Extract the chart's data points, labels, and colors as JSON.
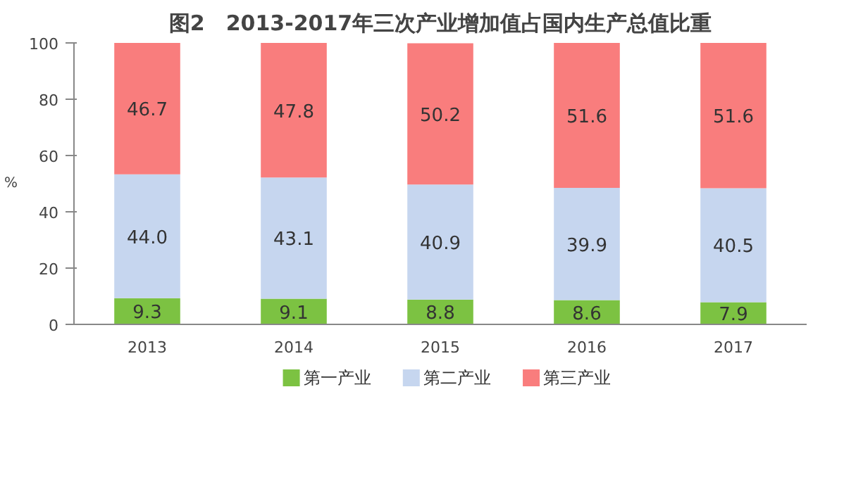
{
  "chart_data": {
    "type": "bar",
    "stacked": true,
    "title": "图2　2013-2017年三次产业增加值占国内生产总值比重",
    "ylabel": "%",
    "categories": [
      "2013",
      "2014",
      "2015",
      "2016",
      "2017"
    ],
    "series": [
      {
        "name": "第一产业",
        "color": "#7cc242",
        "values": [
          9.3,
          9.1,
          8.8,
          8.6,
          7.9
        ],
        "value_labels": [
          "9.3",
          "9.1",
          "8.8",
          "8.6",
          "7.9"
        ]
      },
      {
        "name": "第二产业",
        "color": "#c6d6ef",
        "values": [
          44.0,
          43.1,
          40.9,
          39.9,
          40.5
        ],
        "value_labels": [
          "44.0",
          "43.1",
          "40.9",
          "39.9",
          "40.5"
        ]
      },
      {
        "name": "第三产业",
        "color": "#f97d7d",
        "values": [
          46.7,
          47.8,
          50.2,
          51.6,
          51.6
        ],
        "value_labels": [
          "46.7",
          "47.8",
          "50.2",
          "51.6",
          "51.6"
        ]
      }
    ],
    "ylim": [
      0,
      100
    ],
    "yticks": [
      0,
      20,
      40,
      60,
      80,
      100
    ],
    "legend": "bottom"
  }
}
